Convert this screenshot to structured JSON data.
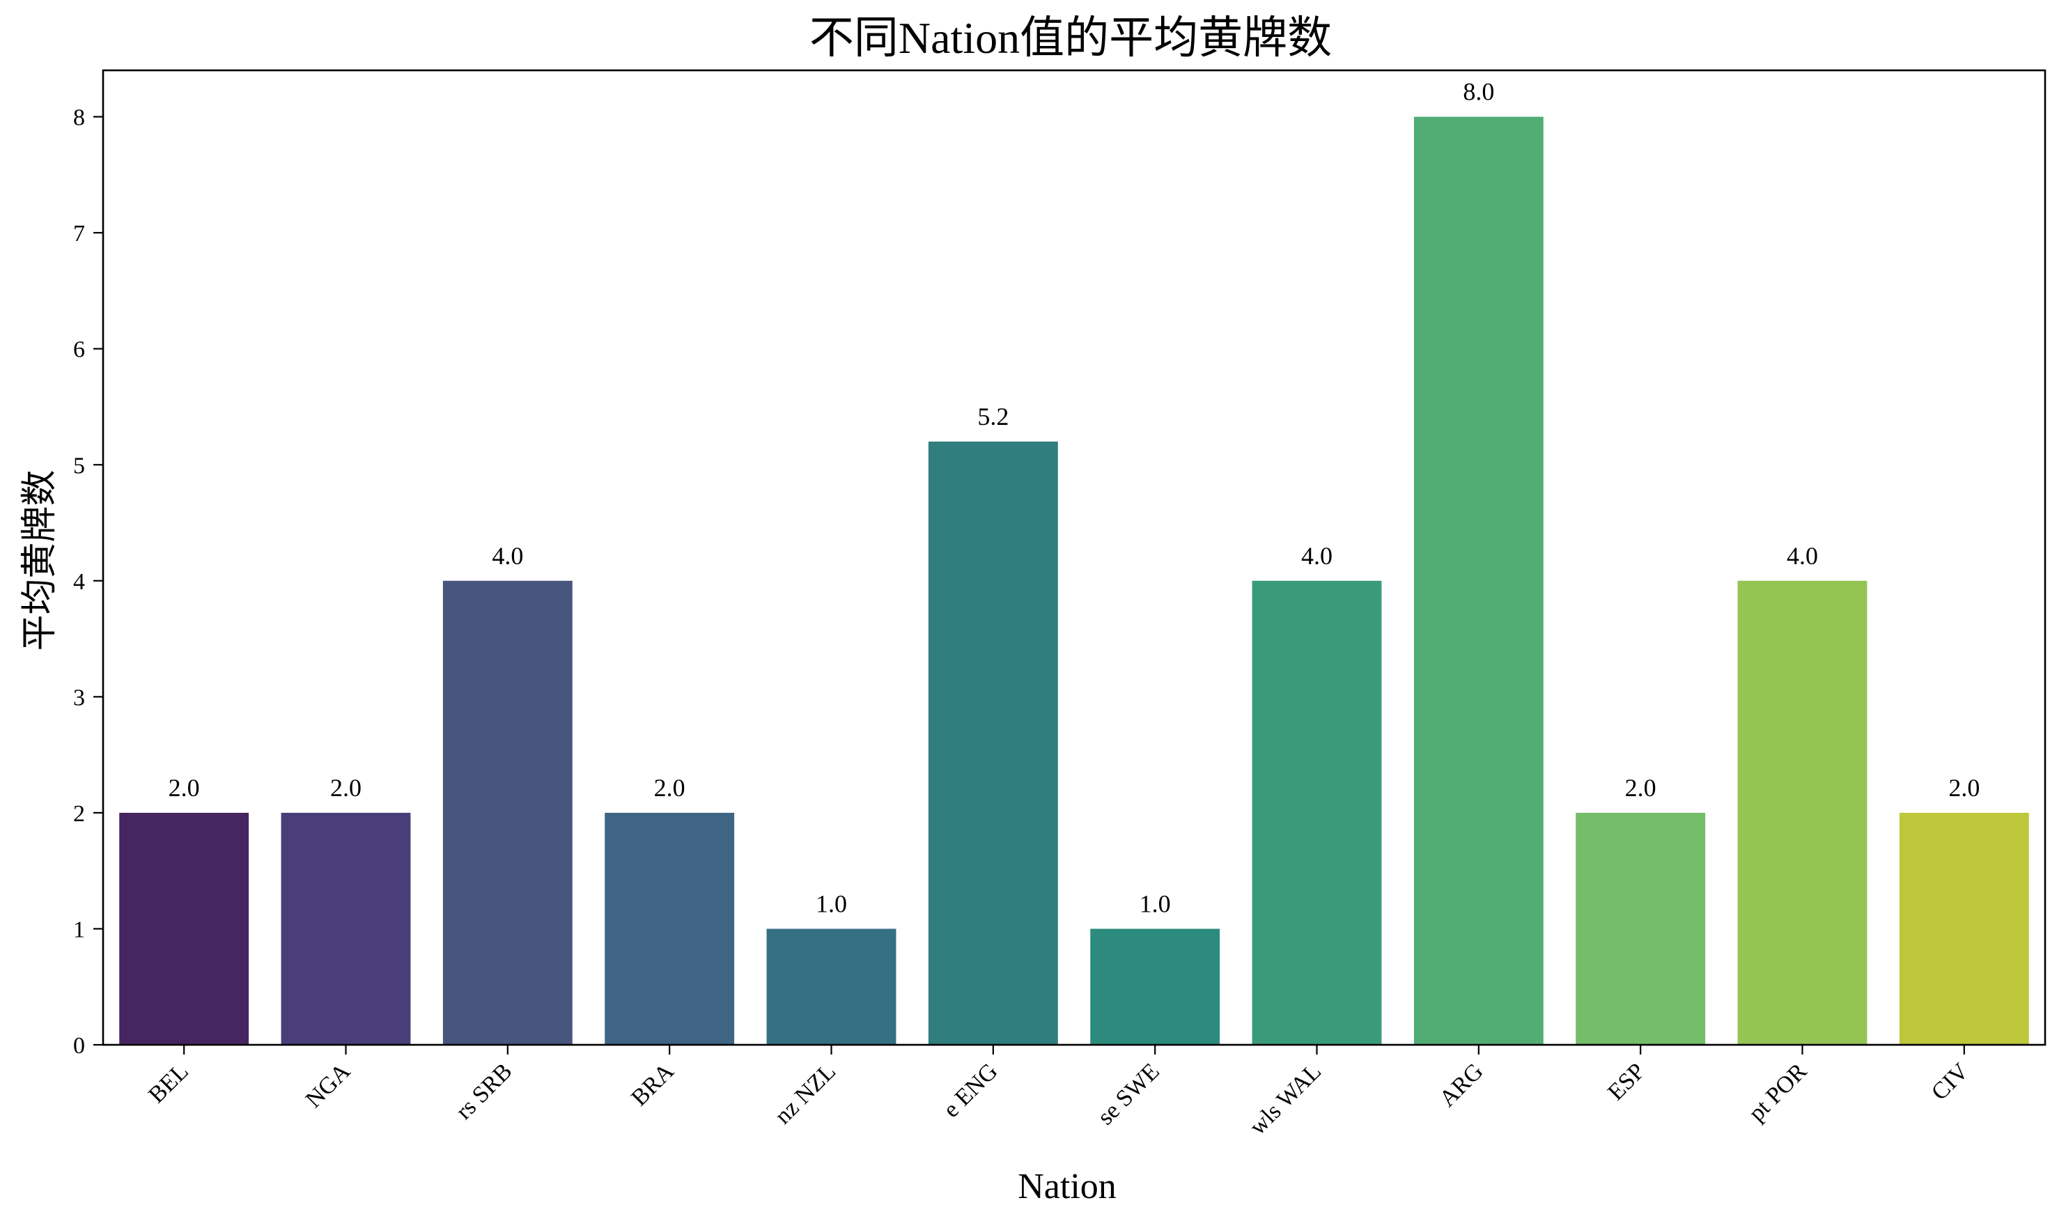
{
  "chart_data": {
    "type": "bar",
    "title": "不同Nation值的平均黄牌数",
    "xlabel": "Nation",
    "ylabel": "平均黄牌数",
    "categories": [
      "BEL",
      "NGA",
      "rs SRB",
      "BRA",
      "nz NZL",
      "e ENG",
      "se SWE",
      "wls WAL",
      "ARG",
      "ESP",
      "pt POR",
      "CIV"
    ],
    "values": [
      2.0,
      2.0,
      4.0,
      2.0,
      1.0,
      5.2,
      1.0,
      4.0,
      8.0,
      2.0,
      4.0,
      2.0
    ],
    "value_labels": [
      "2.0",
      "2.0",
      "4.0",
      "2.0",
      "1.0",
      "5.2",
      "1.0",
      "4.0",
      "8.0",
      "2.0",
      "4.0",
      "2.0"
    ],
    "colors": [
      "#472560",
      "#4a3e7a",
      "#48557e",
      "#3f6484",
      "#357083",
      "#307e7e",
      "#2c8b7d",
      "#3a9b7a",
      "#52ad74",
      "#74bd69",
      "#95c454",
      "#bdc73a"
    ],
    "yticks": [
      "0",
      "1",
      "2",
      "3",
      "4",
      "5",
      "6",
      "7",
      "8"
    ],
    "ylim": [
      0,
      8.4
    ],
    "grid": false,
    "legend": false
  }
}
